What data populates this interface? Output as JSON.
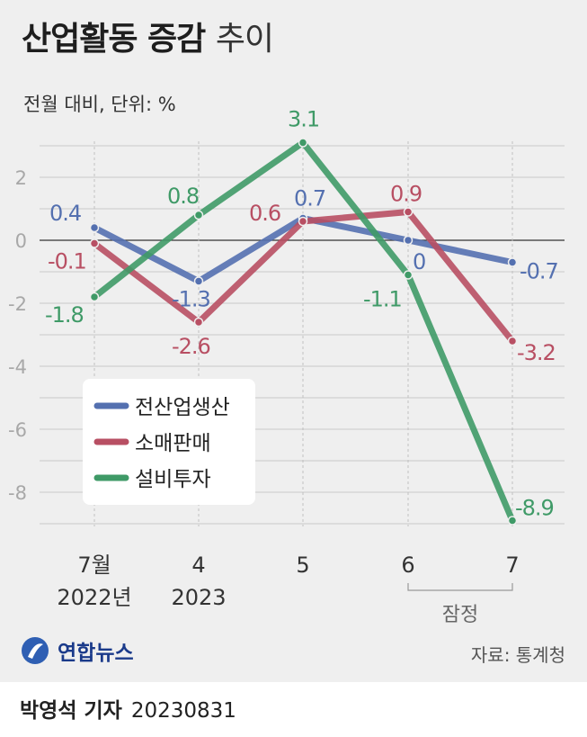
{
  "title": "산업활동 증감",
  "title_suffix": "추이",
  "subtitle": "전월 대비, 단위: %",
  "logo_text": "연합뉴스",
  "source": "자료: 통계청",
  "byline_name": "박영석 기자",
  "byline_date": "20230831",
  "provisional_label": "잠정",
  "chart_data": {
    "type": "line",
    "title": "산업활동 증감 추이",
    "ylabel": "전월 대비, 단위: %",
    "ylim": [
      -9,
      3.2
    ],
    "yticks": [
      2,
      0,
      -2,
      -4,
      -6,
      -8
    ],
    "categories": [
      "7월|2022년",
      "4|2023",
      "5",
      "6",
      "7"
    ],
    "series": [
      {
        "name": "전산업생산",
        "color": "#5470b0",
        "values": [
          0.4,
          -1.3,
          0.7,
          0,
          -0.7
        ],
        "labels": [
          "0.4",
          "-1.3",
          "0.7",
          "0",
          "-0.7"
        ]
      },
      {
        "name": "소매판매",
        "color": "#b84f63",
        "values": [
          -0.1,
          -2.6,
          0.6,
          0.9,
          -3.2
        ],
        "labels": [
          "-0.1",
          "-2.6",
          "0.6",
          "0.9",
          "-3.2"
        ]
      },
      {
        "name": "설비투자",
        "color": "#3f9a67",
        "values": [
          -1.8,
          0.8,
          3.1,
          -1.1,
          -8.9
        ],
        "labels": [
          "-1.8",
          "0.8",
          "3.1",
          "-1.1",
          "-8.9"
        ]
      }
    ],
    "legend": "bottom-left"
  }
}
